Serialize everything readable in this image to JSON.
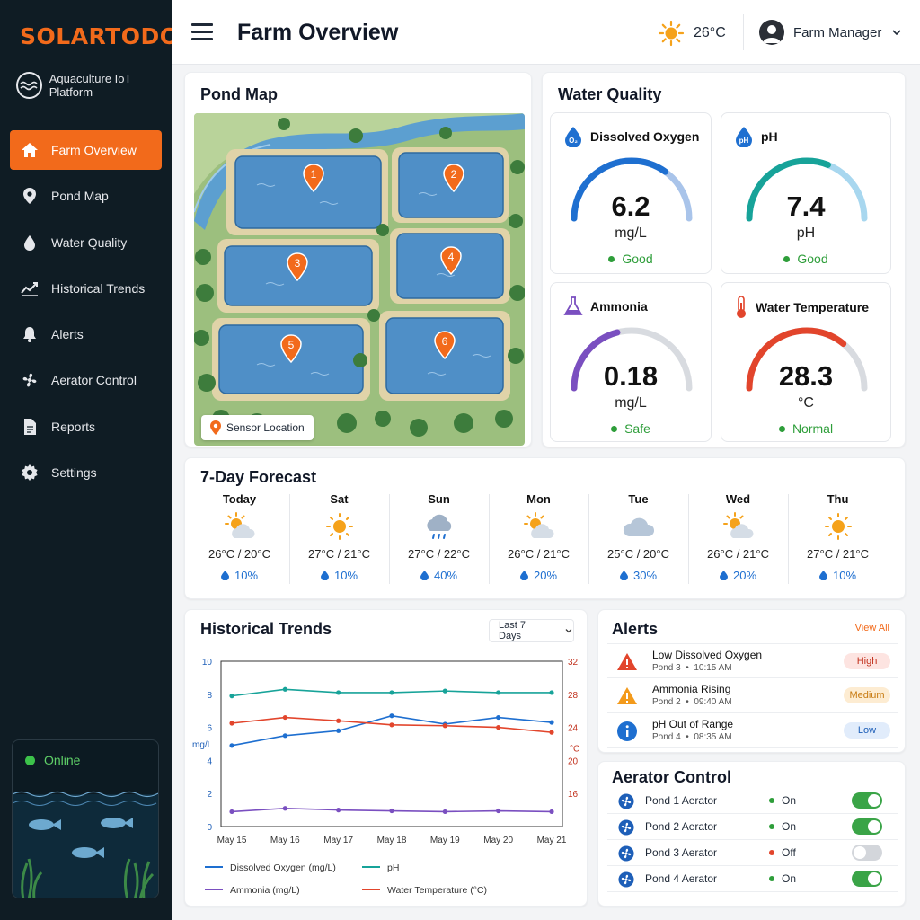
{
  "brand": "SOLARTODO",
  "platform": "Aquaculture IoT Platform",
  "nav": [
    {
      "label": "Farm Overview",
      "icon": "home-icon",
      "active": true
    },
    {
      "label": "Pond Map",
      "icon": "map-pin-icon"
    },
    {
      "label": "Water Quality",
      "icon": "water-drop-icon"
    },
    {
      "label": "Historical Trends",
      "icon": "trend-icon"
    },
    {
      "label": "Alerts",
      "icon": "bell-icon"
    },
    {
      "label": "Aerator Control",
      "icon": "fan-icon"
    },
    {
      "label": "Reports",
      "icon": "document-icon"
    },
    {
      "label": "Settings",
      "icon": "gear-icon"
    }
  ],
  "status": "Online",
  "header": {
    "title": "Farm Overview",
    "temp": "26°C",
    "user": "Farm Manager"
  },
  "pond_map": {
    "title": "Pond Map",
    "legend": "Sensor Location",
    "markers": [
      "1",
      "2",
      "3",
      "4",
      "5",
      "6"
    ]
  },
  "water_quality": {
    "title": "Water Quality",
    "gauges": [
      {
        "name": "Dissolved Oxygen",
        "icon": "o2",
        "value": "6.2",
        "unit": "mg/L",
        "status": "Good",
        "level": 0.7,
        "color": "#1e6fd0",
        "track": "#a9c4ea"
      },
      {
        "name": "pH",
        "icon": "ph",
        "value": "7.4",
        "unit": "pH",
        "status": "Good",
        "level": 0.62,
        "color": "#17a399",
        "track": "#a8d7ef"
      },
      {
        "name": "Ammonia",
        "icon": "flask",
        "value": "0.18",
        "unit": "mg/L",
        "status": "Safe",
        "level": 0.42,
        "color": "#7a4fc0",
        "track": "#d8dbe0"
      },
      {
        "name": "Water Temperature",
        "icon": "thermo",
        "value": "28.3",
        "unit": "°C",
        "status": "Normal",
        "level": 0.72,
        "color": "#e2452c",
        "track": "#d8dbe0"
      }
    ]
  },
  "forecast": {
    "title": "7-Day Forecast",
    "days": [
      {
        "day": "Today",
        "icon": "partly-sunny",
        "temps": "26°C / 20°C",
        "rain": "10%"
      },
      {
        "day": "Sat",
        "icon": "sunny",
        "temps": "27°C / 21°C",
        "rain": "10%"
      },
      {
        "day": "Sun",
        "icon": "rain",
        "temps": "27°C / 22°C",
        "rain": "40%"
      },
      {
        "day": "Mon",
        "icon": "partly-sunny",
        "temps": "26°C / 21°C",
        "rain": "20%"
      },
      {
        "day": "Tue",
        "icon": "cloudy",
        "temps": "25°C / 20°C",
        "rain": "30%"
      },
      {
        "day": "Wed",
        "icon": "partly-sunny",
        "temps": "26°C / 21°C",
        "rain": "20%"
      },
      {
        "day": "Thu",
        "icon": "sunny",
        "temps": "27°C / 21°C",
        "rain": "10%"
      }
    ]
  },
  "trends": {
    "title": "Historical Trends",
    "range": "Last 7 Days"
  },
  "chart_data": {
    "type": "line",
    "x": [
      "May 15",
      "May 16",
      "May 17",
      "May 18",
      "May 19",
      "May 20",
      "May 21"
    ],
    "ylabel_left": "mg/L",
    "ylabel_right": "°C",
    "ylim_left": [
      0,
      10
    ],
    "ylim_right": [
      12,
      32
    ],
    "left_ticks": [
      "10",
      "8",
      "6",
      "4",
      "2",
      "0"
    ],
    "right_ticks": [
      "32",
      "28",
      "24",
      "20",
      "16"
    ],
    "legend": "bottom",
    "series": [
      {
        "name": "Dissolved Oxygen (mg/L)",
        "axis": "left",
        "color": "#1e6fd0",
        "values": [
          4.9,
          5.5,
          5.8,
          6.7,
          6.2,
          6.6,
          6.3
        ]
      },
      {
        "name": "pH",
        "axis": "left",
        "color": "#17a399",
        "values": [
          7.9,
          8.3,
          8.1,
          8.1,
          8.2,
          8.1,
          8.1
        ]
      },
      {
        "name": "Ammonia (mg/L)",
        "axis": "left",
        "color": "#7a4fc0",
        "values": [
          0.9,
          1.1,
          1.0,
          0.95,
          0.9,
          0.95,
          0.9
        ]
      },
      {
        "name": "Water Temperature (°C)",
        "axis": "right",
        "color": "#e2452c",
        "values": [
          24.5,
          25.2,
          24.8,
          24.3,
          24.2,
          24.0,
          23.4
        ]
      }
    ]
  },
  "alerts": {
    "title": "Alerts",
    "view_all": "View All",
    "items": [
      {
        "title": "Low Dissolved Oxygen",
        "pond": "Pond 3",
        "time": "10:15 AM",
        "level": "High",
        "icon": "warning-icon",
        "color": "#e2452c",
        "bg": "#fde4e1",
        "fg": "#c2321e"
      },
      {
        "title": "Ammonia Rising",
        "pond": "Pond 2",
        "time": "09:40 AM",
        "level": "Medium",
        "icon": "warning-icon",
        "color": "#f39a1b",
        "bg": "#fdecd2",
        "fg": "#c77a10"
      },
      {
        "title": "pH Out of Range",
        "pond": "Pond 4",
        "time": "08:35 AM",
        "level": "Low",
        "icon": "info-icon",
        "color": "#1e6fd0",
        "bg": "#e1ecfb",
        "fg": "#1e5fb8"
      }
    ]
  },
  "aerators": {
    "title": "Aerator Control",
    "items": [
      {
        "name": "Pond 1 Aerator",
        "status": "On",
        "on": true
      },
      {
        "name": "Pond 2 Aerator",
        "status": "On",
        "on": true
      },
      {
        "name": "Pond 3 Aerator",
        "status": "Off",
        "on": false
      },
      {
        "name": "Pond 4 Aerator",
        "status": "On",
        "on": true
      }
    ]
  }
}
